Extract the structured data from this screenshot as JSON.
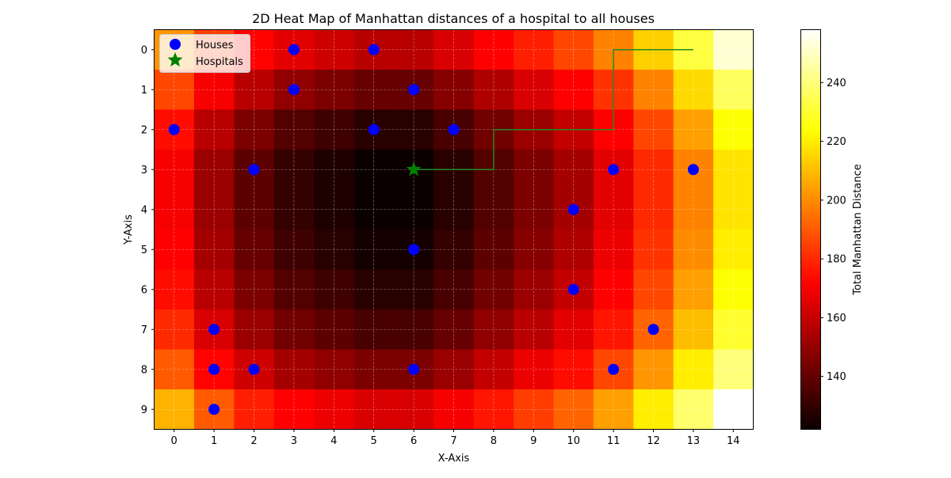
{
  "chart_data": {
    "type": "heatmap",
    "title": "2D Heat Map of Manhattan distances of a hospital to all houses",
    "xlabel": "X-Axis",
    "ylabel": "Y-Axis",
    "colorbar_label": "Total Manhattan Distance",
    "colormap": "hot",
    "x_ticks": [
      "0",
      "1",
      "2",
      "3",
      "4",
      "5",
      "6",
      "7",
      "8",
      "9",
      "10",
      "11",
      "12",
      "13",
      "14"
    ],
    "y_ticks": [
      "0",
      "1",
      "2",
      "3",
      "4",
      "5",
      "6",
      "7",
      "8",
      "9"
    ],
    "colorbar_range": [
      122,
      258
    ],
    "colorbar_ticks": [
      "140",
      "160",
      "180",
      "200",
      "220",
      "240"
    ],
    "colorbar_tick_values": [
      140,
      160,
      180,
      200,
      220,
      240
    ],
    "grid": true,
    "legend_position": "upper-left",
    "legend": [
      "Houses",
      "Hospitals"
    ],
    "houses": [
      [
        0,
        2
      ],
      [
        1,
        7
      ],
      [
        1,
        8
      ],
      [
        1,
        9
      ],
      [
        2,
        3
      ],
      [
        2,
        8
      ],
      [
        3,
        0
      ],
      [
        3,
        1
      ],
      [
        5,
        0
      ],
      [
        5,
        2
      ],
      [
        6,
        1
      ],
      [
        6,
        5
      ],
      [
        6,
        8
      ],
      [
        7,
        2
      ],
      [
        10,
        4
      ],
      [
        10,
        6
      ],
      [
        11,
        3
      ],
      [
        11,
        8
      ],
      [
        12,
        7
      ],
      [
        13,
        3
      ]
    ],
    "hospitals": [
      [
        6,
        3
      ]
    ],
    "path": [
      [
        6,
        3
      ],
      [
        8,
        3
      ],
      [
        8,
        2
      ],
      [
        11,
        2
      ],
      [
        11,
        0
      ],
      [
        13,
        0
      ]
    ],
    "colors": {
      "houses": "#0000ff",
      "hospitals": "#008000",
      "path": "#228b22"
    }
  }
}
